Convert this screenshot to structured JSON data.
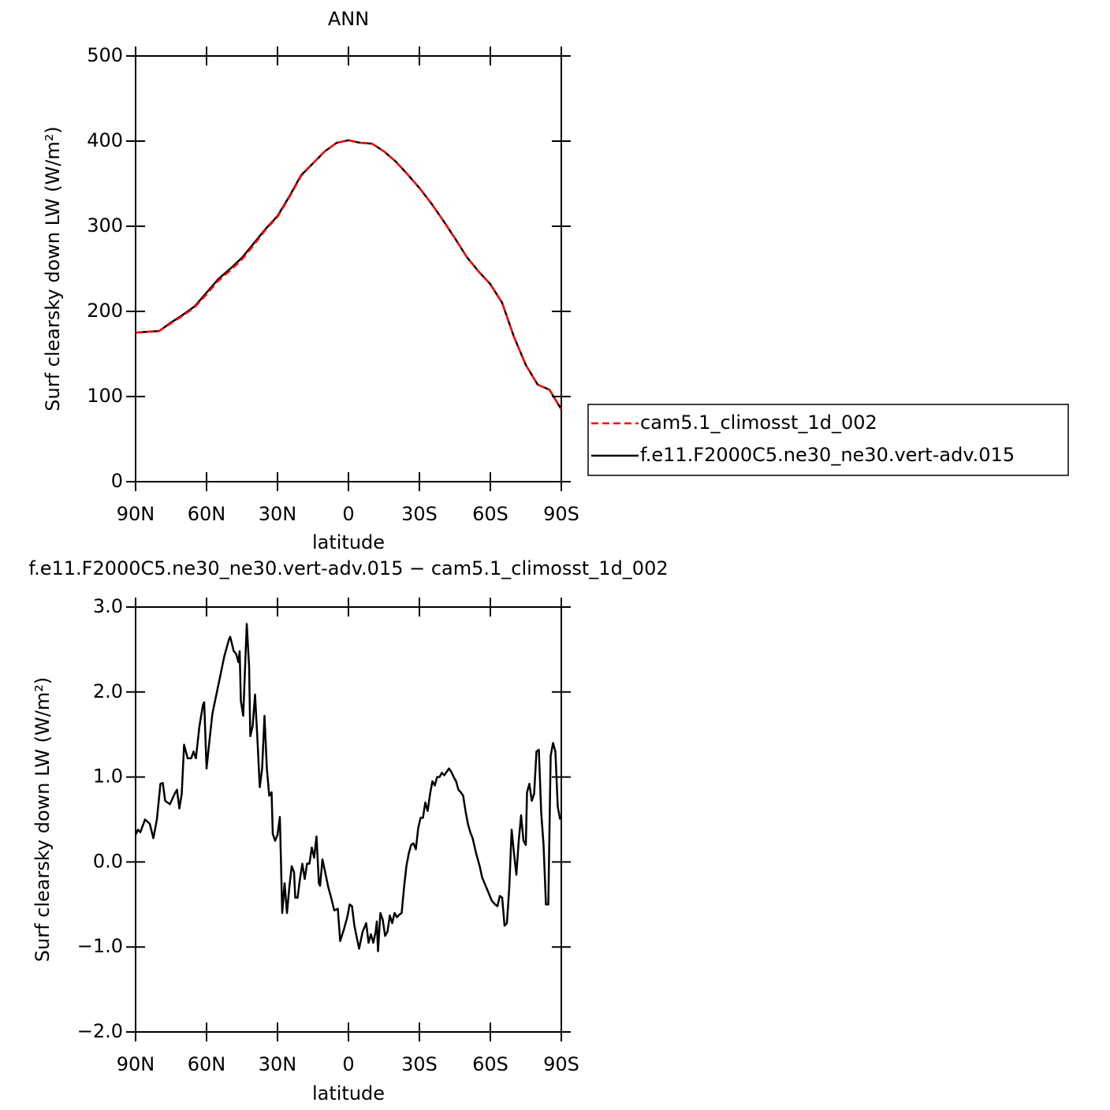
{
  "chart_data": [
    {
      "type": "line",
      "title": "ANN",
      "ylabel": "Surf clearsky down LW (W/m²)",
      "xlabel": "latitude",
      "xlim": [
        90,
        -90
      ],
      "ylim": [
        0,
        500
      ],
      "xticks": [
        {
          "value": 90,
          "label": "90N"
        },
        {
          "value": 60,
          "label": "60N"
        },
        {
          "value": 30,
          "label": "30N"
        },
        0,
        {
          "value": -30,
          "label": "30S"
        },
        {
          "value": -60,
          "label": "60S"
        },
        {
          "value": -90,
          "label": "90S"
        }
      ],
      "yticks": [
        0,
        100,
        200,
        300,
        400,
        500
      ],
      "legend": "right",
      "x": [
        90,
        85,
        80,
        75,
        70,
        65,
        60,
        55,
        50,
        45,
        40,
        35,
        30,
        25,
        20,
        15,
        10,
        5,
        0,
        -5,
        -10,
        -15,
        -20,
        -25,
        -30,
        -35,
        -40,
        -45,
        -50,
        -55,
        -60,
        -65,
        -70,
        -75,
        -80,
        -85,
        -90
      ],
      "series": [
        {
          "name": "cam5.1_climosst_1d_002",
          "color": "#ff0000",
          "line_style": "dashed",
          "values": [
            175,
            176,
            177,
            186,
            195,
            205,
            220,
            236,
            248,
            261,
            278,
            296,
            311,
            334,
            359,
            374,
            388,
            398,
            401,
            398,
            397,
            388,
            376,
            361,
            345,
            327,
            307,
            286,
            264,
            247,
            232,
            210,
            170,
            137,
            114,
            108,
            85
          ]
        },
        {
          "name": "f.e11.F2000C5.ne30_ne30.vert-adv.015",
          "color": "#000000",
          "line_style": "solid",
          "values": [
            175,
            176,
            177,
            187,
            196,
            206,
            222,
            238,
            250,
            263,
            280,
            297,
            312,
            335,
            360,
            374,
            388,
            398,
            401,
            398,
            397,
            388,
            376,
            361,
            345,
            327,
            307,
            286,
            264,
            247,
            232,
            210,
            170,
            137,
            114,
            108,
            85
          ]
        }
      ]
    },
    {
      "type": "line",
      "title": "f.e11.F2000C5.ne30_ne30.vert-adv.015 − cam5.1_climosst_1d_002",
      "ylabel": "Surf clearsky down LW (W/m²)",
      "xlabel": "latitude",
      "xlim": [
        90,
        -90
      ],
      "ylim": [
        -2,
        3
      ],
      "xticks": [
        {
          "value": 90,
          "label": "90N"
        },
        {
          "value": 60,
          "label": "60N"
        },
        {
          "value": 30,
          "label": "30N"
        },
        0,
        {
          "value": -30,
          "label": "30S"
        },
        {
          "value": -60,
          "label": "60S"
        },
        {
          "value": -90,
          "label": "90S"
        }
      ],
      "yticks": [
        {
          "value": -2,
          "label": "−2.0"
        },
        {
          "value": -1,
          "label": "−1.0"
        },
        {
          "value": 0,
          "label": "0.0"
        },
        {
          "value": 1,
          "label": "1.0"
        },
        {
          "value": 2,
          "label": "2.0"
        },
        {
          "value": 3,
          "label": "3.0"
        }
      ],
      "x": [
        90,
        89,
        88,
        86,
        84,
        82.5,
        81,
        79.5,
        78.5,
        77.5,
        75.5,
        73.5,
        72.5,
        71.5,
        70.5,
        69.5,
        68,
        66.5,
        65.5,
        64.5,
        63,
        61.5,
        61,
        60,
        58.5,
        57.5,
        54.5,
        52.5,
        50.5,
        50,
        48.5,
        47.5,
        46.5,
        46,
        45.5,
        44.5,
        43,
        42,
        41.5,
        40.5,
        39.5,
        38.5,
        37.5,
        36.5,
        35.5,
        34.5,
        33.5,
        32.5,
        32,
        31,
        30,
        29,
        28,
        27,
        26,
        25,
        24,
        23,
        22.5,
        21.5,
        20.5,
        19.5,
        18.5,
        17.5,
        16.5,
        15.5,
        14.5,
        13.5,
        12.5,
        12,
        11,
        10,
        8.5,
        7.5,
        6,
        4.5,
        3.5,
        2,
        0.5,
        -0.5,
        -1.5,
        -2.5,
        -4.5,
        -6,
        -7.5,
        -8.5,
        -9.5,
        -10.5,
        -11.5,
        -12,
        -12.5,
        -13.5,
        -14.5,
        -15.5,
        -16.5,
        -17.5,
        -18.5,
        -19.5,
        -20.5,
        -21.5,
        -22.5,
        -23.5,
        -24.5,
        -25.5,
        -26.5,
        -27.5,
        -28.5,
        -29.5,
        -30.5,
        -31.5,
        -32.5,
        -33.5,
        -34.5,
        -35.5,
        -36.5,
        -37.5,
        -38.5,
        -39.5,
        -40.5,
        -41.5,
        -42.5,
        -43.5,
        -44.5,
        -45.5,
        -46.5,
        -47.5,
        -48.5,
        -49.5,
        -50.5,
        -51.5,
        -52.5,
        -54,
        -55.5,
        -56.5,
        -58,
        -59.5,
        -60.5,
        -62,
        -63,
        -64,
        -65,
        -66,
        -67,
        -68,
        -69,
        -70,
        -71,
        -72,
        -73,
        -74,
        -75,
        -75.5,
        -76.5,
        -77.5,
        -78.5,
        -79.5,
        -80.5,
        -81.5,
        -82.5,
        -83.5,
        -84.5,
        -85.5,
        -86.5,
        -87.5,
        -88.5,
        -89.5
      ],
      "series": [
        {
          "color": "#000000",
          "line_style": "solid",
          "values": [
            0.32,
            0.38,
            0.35,
            0.5,
            0.45,
            0.28,
            0.5,
            0.92,
            0.93,
            0.72,
            0.68,
            0.8,
            0.85,
            0.63,
            0.8,
            1.38,
            1.22,
            1.22,
            1.3,
            1.22,
            1.6,
            1.85,
            1.88,
            1.1,
            1.5,
            1.75,
            2.15,
            2.42,
            2.62,
            2.65,
            2.48,
            2.45,
            2.35,
            2.48,
            1.9,
            1.72,
            2.8,
            2.3,
            1.48,
            1.6,
            1.97,
            1.45,
            0.88,
            1.1,
            1.72,
            1.1,
            0.78,
            0.82,
            0.33,
            0.25,
            0.32,
            0.53,
            -0.6,
            -0.25,
            -0.6,
            -0.3,
            -0.05,
            -0.12,
            -0.42,
            -0.42,
            -0.2,
            -0.02,
            -0.2,
            -0.02,
            -0.02,
            0.17,
            0.05,
            0.3,
            -0.25,
            -0.28,
            0.03,
            -0.1,
            -0.3,
            -0.4,
            -0.57,
            -0.55,
            -0.93,
            -0.8,
            -0.65,
            -0.5,
            -0.52,
            -0.75,
            -1.02,
            -0.82,
            -0.72,
            -0.95,
            -0.85,
            -0.95,
            -0.82,
            -0.7,
            -1.05,
            -0.6,
            -0.68,
            -0.87,
            -0.82,
            -0.63,
            -0.72,
            -0.6,
            -0.65,
            -0.62,
            -0.6,
            -0.3,
            -0.05,
            0.1,
            0.2,
            0.22,
            0.15,
            0.4,
            0.52,
            0.52,
            0.7,
            0.6,
            0.8,
            0.95,
            0.9,
            1.0,
            1.0,
            1.05,
            1.02,
            1.06,
            1.1,
            1.06,
            1.0,
            0.95,
            0.85,
            0.82,
            0.78,
            0.6,
            0.45,
            0.35,
            0.28,
            0.1,
            -0.05,
            -0.18,
            -0.28,
            -0.38,
            -0.45,
            -0.5,
            -0.52,
            -0.4,
            -0.42,
            -0.75,
            -0.72,
            -0.3,
            0.38,
            0.1,
            -0.15,
            0.25,
            0.55,
            0.25,
            0.2,
            0.82,
            0.92,
            0.72,
            0.8,
            1.3,
            1.32,
            0.58,
            0.2,
            -0.5,
            -0.5,
            1.25,
            1.4,
            1.3,
            0.65,
            0.5
          ]
        }
      ]
    }
  ]
}
